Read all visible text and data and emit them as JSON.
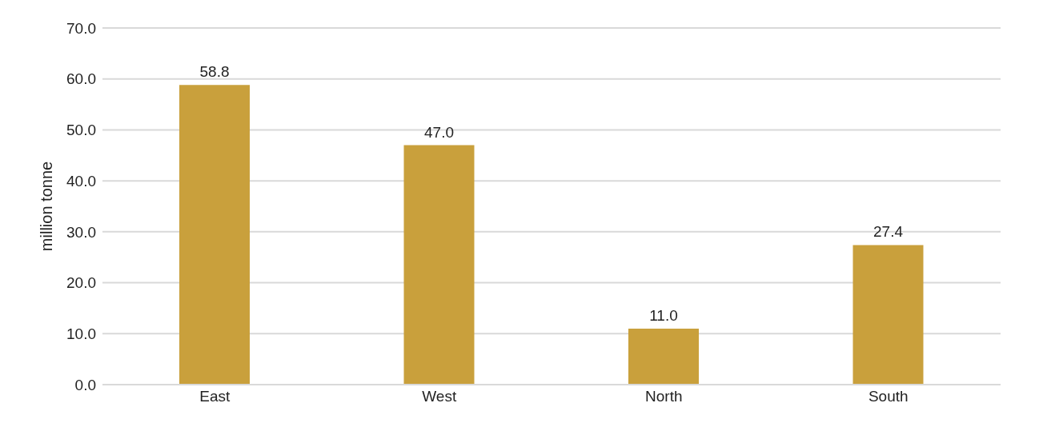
{
  "chart_data": {
    "type": "bar",
    "ylabel": "million tonne",
    "categories": [
      "East",
      "West",
      "North",
      "South"
    ],
    "values": [
      58.8,
      47.0,
      11.0,
      27.4
    ],
    "color": "#c9a03c",
    "ylim": [
      0,
      70
    ],
    "yticks": [
      {
        "value": 0,
        "label": "0.0"
      },
      {
        "value": 10,
        "label": "10.0"
      },
      {
        "value": 20,
        "label": "20.0"
      },
      {
        "value": 30,
        "label": "30.0"
      },
      {
        "value": 40,
        "label": "40.0"
      },
      {
        "value": 50,
        "label": "50.0"
      },
      {
        "value": 60,
        "label": "60.0"
      },
      {
        "value": 70,
        "label": "70.0"
      }
    ],
    "value_labels": [
      "58.8",
      "47.0",
      "11.0",
      "27.4"
    ],
    "grid": "y",
    "legend": false
  }
}
